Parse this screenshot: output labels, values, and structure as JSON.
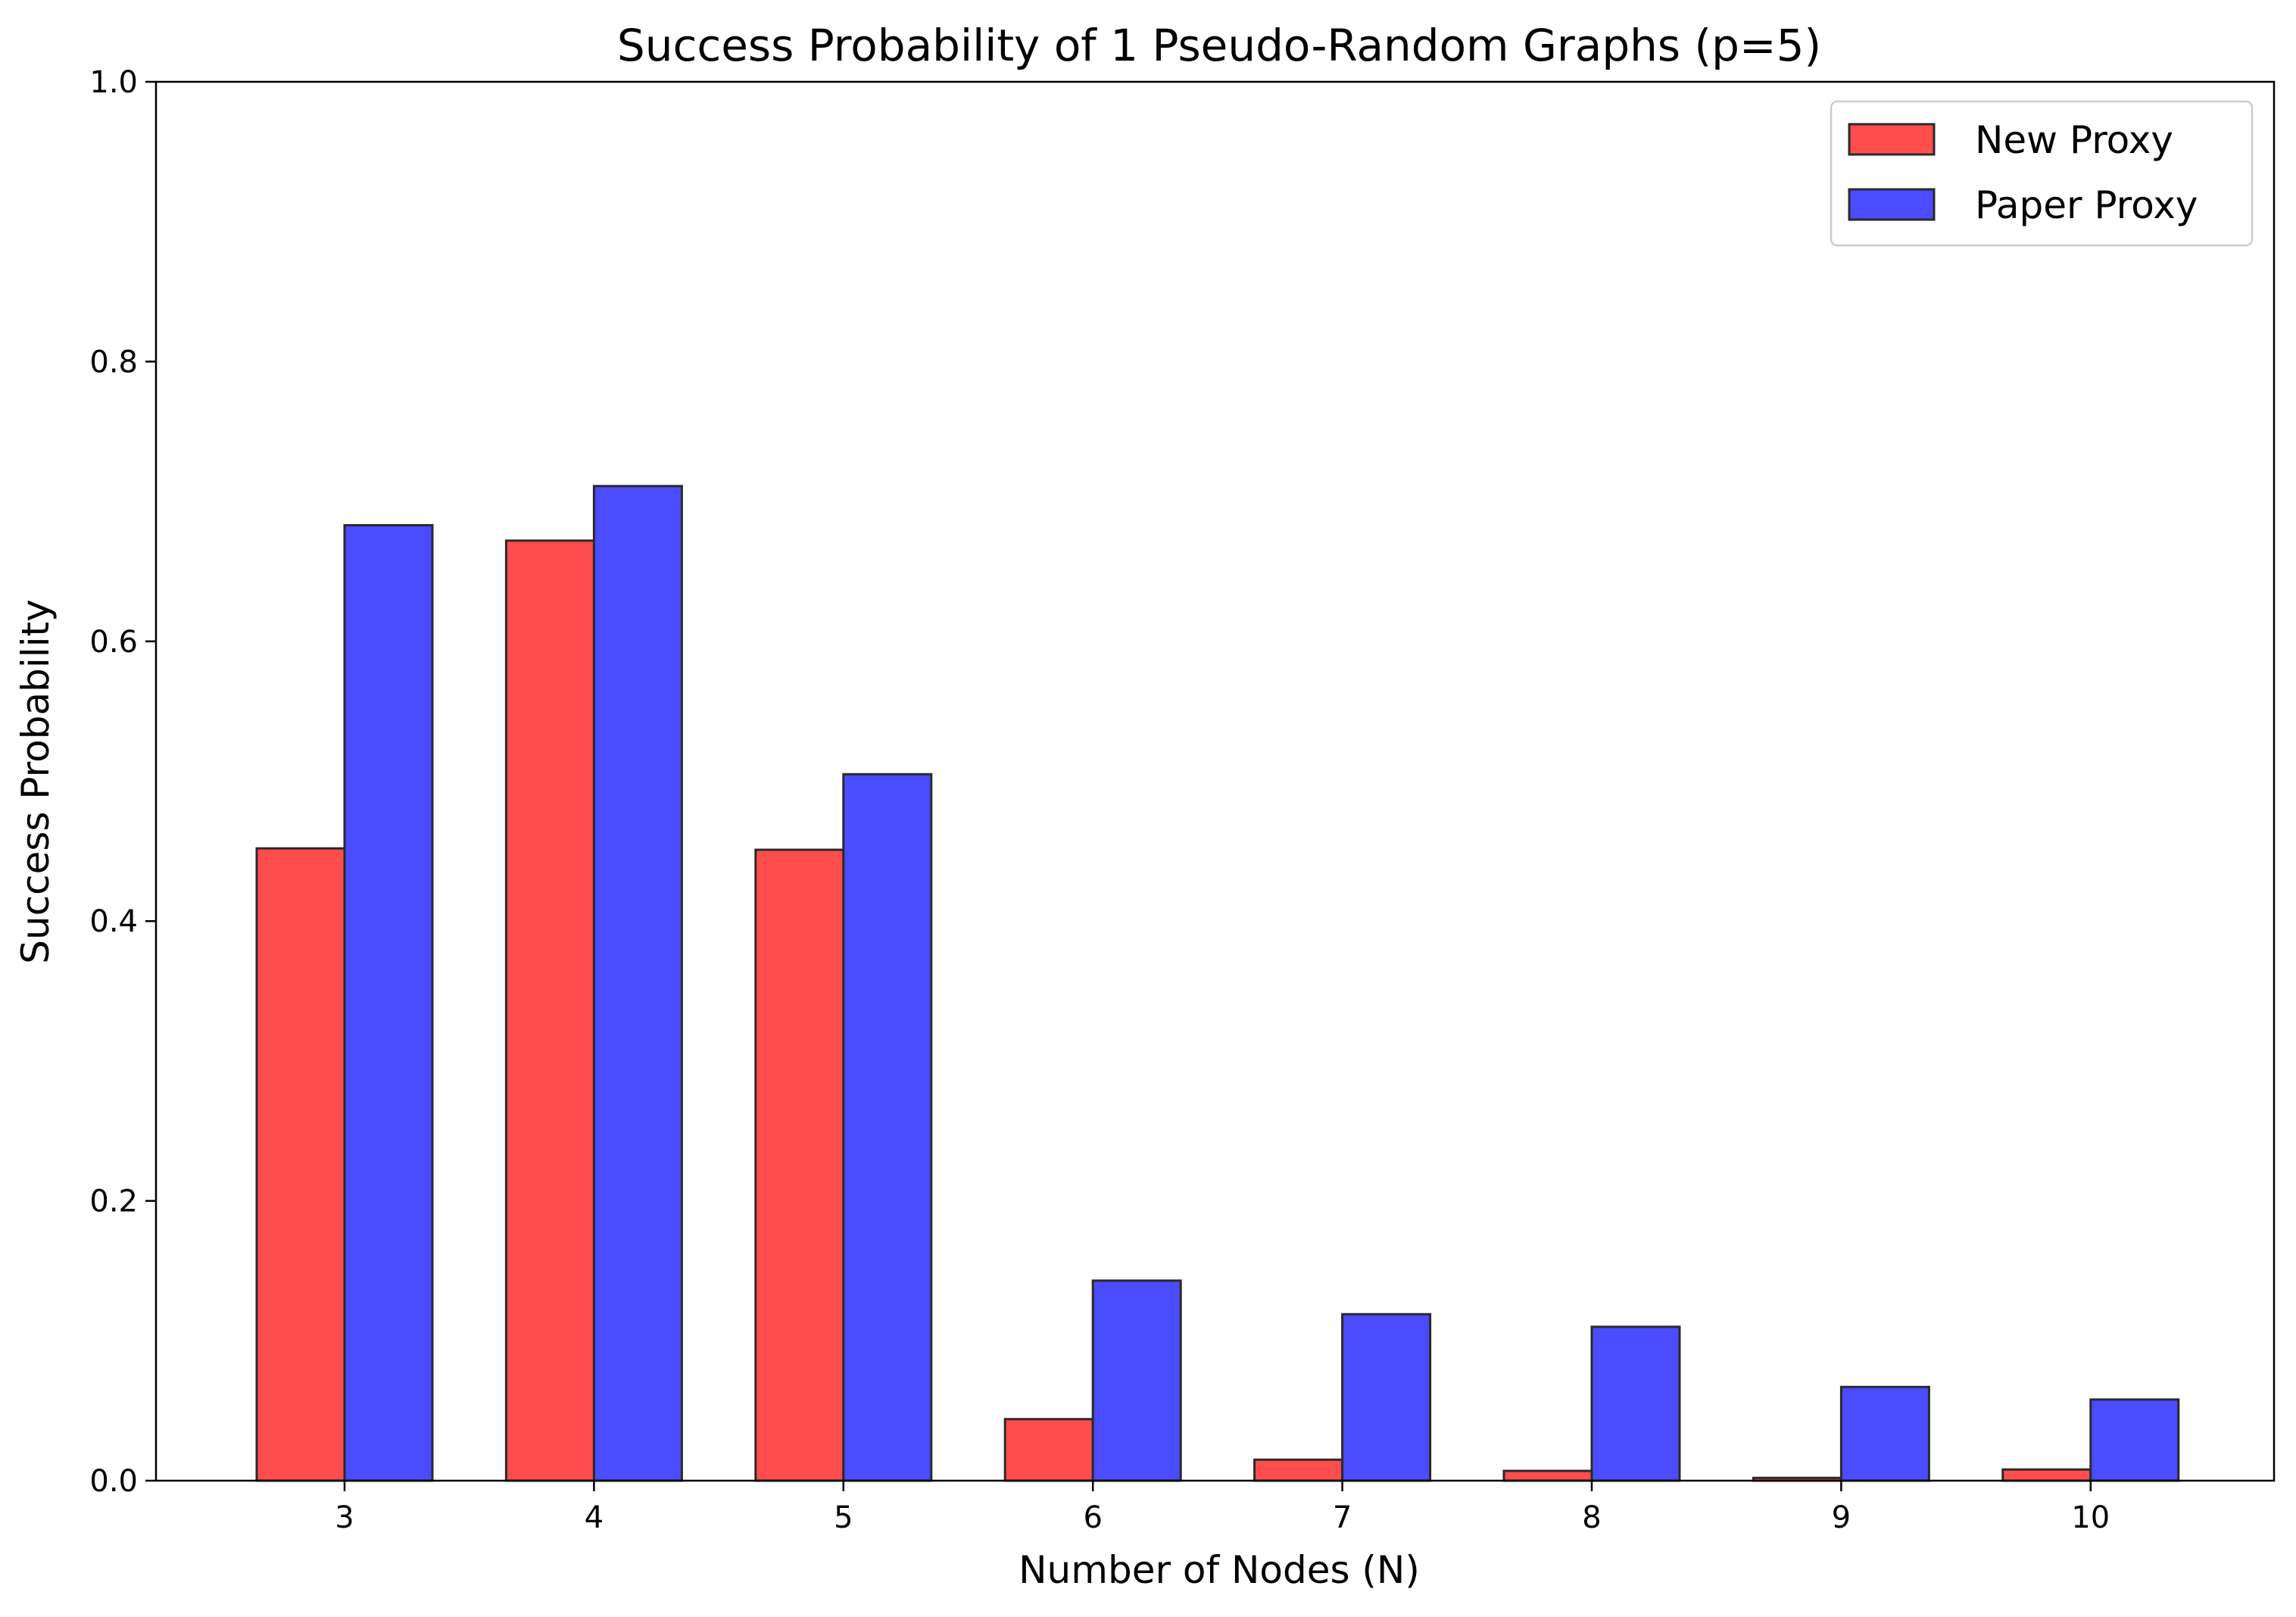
{
  "chart_data": {
    "type": "bar",
    "title": "Success Probability of 1 Pseudo-Random Graphs (p=5)",
    "xlabel": "Number of Nodes (N)",
    "ylabel": "Success Probability",
    "categories": [
      "3",
      "4",
      "5",
      "6",
      "7",
      "8",
      "9",
      "10"
    ],
    "ylim": [
      0,
      1.0
    ],
    "yticks": [
      "0.0",
      "0.2",
      "0.4",
      "0.6",
      "0.8",
      "1.0"
    ],
    "grid": false,
    "legend_position": "top-right",
    "series": [
      {
        "name": "New Proxy",
        "color": "#ff4d4d",
        "values": [
          0.452,
          0.672,
          0.451,
          0.044,
          0.015,
          0.007,
          0.002,
          0.008
        ]
      },
      {
        "name": "Paper Proxy",
        "color": "#4b4bff",
        "values": [
          0.683,
          0.711,
          0.505,
          0.143,
          0.119,
          0.11,
          0.067,
          0.058
        ]
      }
    ]
  }
}
